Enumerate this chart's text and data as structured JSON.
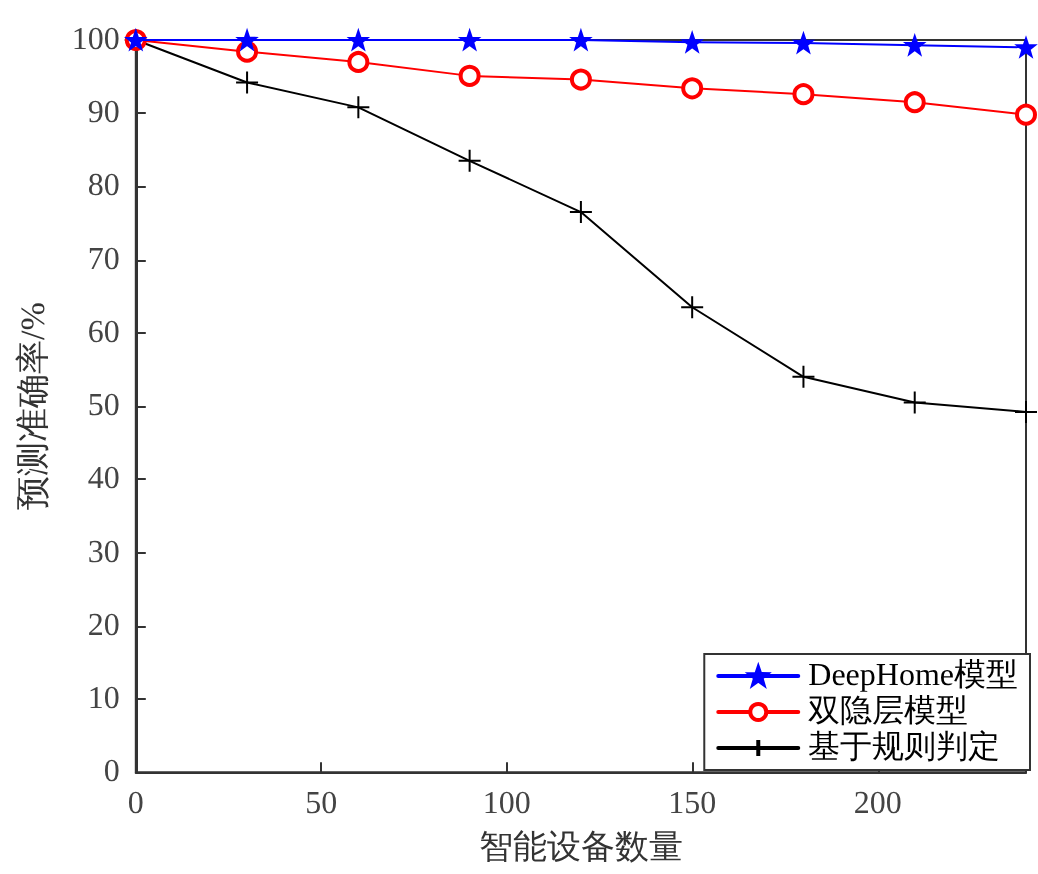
{
  "chart_data": {
    "type": "line",
    "xlabel": "智能设备数量",
    "ylabel": "预测准确率/%",
    "x": [
      0,
      30,
      60,
      90,
      120,
      150,
      180,
      210,
      240
    ],
    "xlim": [
      0,
      240
    ],
    "xticks": [
      0,
      50,
      100,
      150,
      200
    ],
    "ylim": [
      0,
      100
    ],
    "yticks": [
      0,
      10,
      20,
      30,
      40,
      50,
      60,
      70,
      80,
      90,
      100
    ],
    "grid": false,
    "legend": "bottom right",
    "line_style": "solid",
    "series": [
      {
        "name": "DeepHome模型",
        "color": "#0000ff",
        "marker": "star",
        "values": [
          100,
          100,
          100,
          100,
          100,
          99.7,
          99.6,
          99.3,
          99
        ]
      },
      {
        "name": "双隐层模型",
        "color": "#ff0000",
        "marker": "circle",
        "values": [
          100,
          98.4,
          97,
          95.1,
          94.6,
          93.4,
          92.6,
          91.5,
          89.8
        ]
      },
      {
        "name": "基于规则判定",
        "color": "#000000",
        "marker": "cross",
        "values": [
          100,
          94.2,
          90.8,
          83.5,
          76.5,
          63.5,
          54,
          50.5,
          49.2
        ]
      }
    ]
  }
}
